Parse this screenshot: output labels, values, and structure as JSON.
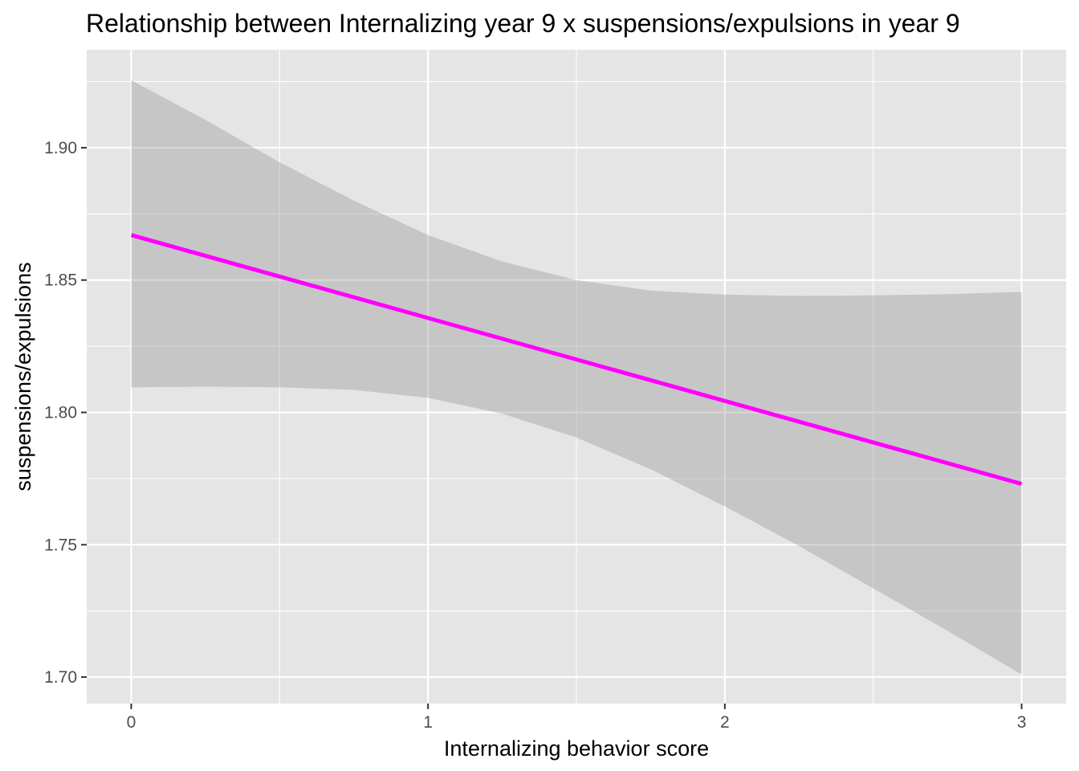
{
  "chart_data": {
    "type": "line",
    "title": "Relationship between Internalizing year 9 x suspensions/expulsions in year 9",
    "xlabel": "Internalizing behavior score",
    "ylabel": "suspensions/expulsions",
    "xlim": [
      -0.15,
      3.15
    ],
    "ylim": [
      1.69,
      1.937
    ],
    "x_ticks": [
      0,
      1,
      2,
      3
    ],
    "x_tick_labels": [
      "0",
      "1",
      "2",
      "3"
    ],
    "y_ticks": [
      1.7,
      1.75,
      1.8,
      1.85,
      1.9
    ],
    "y_tick_labels": [
      "1.70",
      "1.75",
      "1.80",
      "1.85",
      "1.90"
    ],
    "grid": true,
    "colors": {
      "panel": "#e5e5e5",
      "grid": "#ffffff",
      "line": "#ff00ff",
      "ribbon": "#999999"
    },
    "series": [
      {
        "type": "line",
        "x": [
          0,
          3
        ],
        "y": [
          1.867,
          1.773
        ]
      },
      {
        "type": "ribbon",
        "x": [
          0,
          0.25,
          0.5,
          0.75,
          1.0,
          1.25,
          1.5,
          1.75,
          2.0,
          2.25,
          2.5,
          2.75,
          3.0
        ],
        "lower": [
          1.8095,
          1.8097,
          1.8095,
          1.8085,
          1.8055,
          1.7995,
          1.7905,
          1.7785,
          1.7645,
          1.7495,
          1.7335,
          1.7175,
          1.701
        ],
        "upper": [
          1.9255,
          1.9105,
          1.8945,
          1.88,
          1.867,
          1.857,
          1.85,
          1.846,
          1.8445,
          1.844,
          1.8442,
          1.8447,
          1.8455
        ]
      }
    ]
  }
}
